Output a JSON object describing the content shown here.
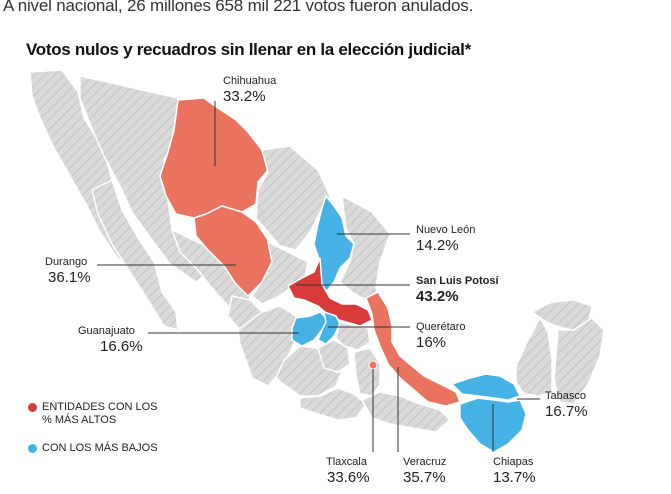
{
  "subtitle": "A nivel nacional, 26 millones 658 mil 221 votos fueron anulados.",
  "title": "Votos nulos y recuadros sin llenar en la elección judicial*",
  "colors": {
    "high": "#e9735f",
    "highest": "#d93b3b",
    "low": "#45b2e6",
    "neutral": "#d8d8d8",
    "line": "#333333"
  },
  "states": {
    "chihuahua": {
      "name": "Chihuahua",
      "value": "33.2%"
    },
    "durango": {
      "name": "Durango",
      "value": "36.1%"
    },
    "guanajuato": {
      "name": "Guanajuato",
      "value": "16.6%"
    },
    "nuevo_leon": {
      "name": "Nuevo León",
      "value": "14.2%"
    },
    "san_luis_potosi": {
      "name": "San Luis Potosí",
      "value": "43.2%"
    },
    "queretaro": {
      "name": "Querétaro",
      "value": "16%"
    },
    "tabasco": {
      "name": "Tabasco",
      "value": "16.7%"
    },
    "tlaxcala": {
      "name": "Tlaxcala",
      "value": "33.6%"
    },
    "veracruz": {
      "name": "Veracruz",
      "value": "35.7%"
    },
    "chiapas": {
      "name": "Chiapas",
      "value": "13.7%"
    }
  },
  "legend": {
    "high": "ENTIDADES CON LOS % MÁS ALTOS",
    "low": "CON LOS MÁS BAJOS"
  }
}
